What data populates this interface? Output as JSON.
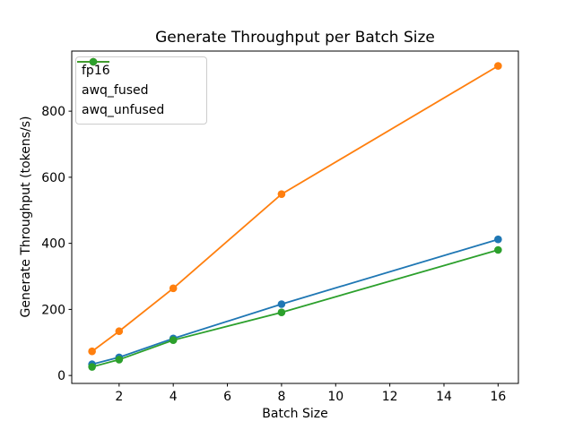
{
  "chart_data": {
    "type": "line",
    "title": "Generate Throughput per Batch Size",
    "xlabel": "Batch Size",
    "ylabel": "Generate Throughput (tokens/s)",
    "x": [
      1,
      2,
      4,
      8,
      16
    ],
    "series": [
      {
        "name": "fp16",
        "color": "#1f77b4",
        "values": [
          34,
          55,
          112,
          216,
          412
        ]
      },
      {
        "name": "awq_fused",
        "color": "#ff7f0e",
        "values": [
          73,
          134,
          264,
          549,
          937
        ]
      },
      {
        "name": "awq_unfused",
        "color": "#2ca02c",
        "values": [
          26,
          48,
          107,
          191,
          380
        ]
      }
    ],
    "xticks": [
      2,
      4,
      6,
      8,
      10,
      12,
      14,
      16
    ],
    "yticks": [
      0,
      200,
      400,
      600,
      800
    ],
    "xlim": [
      0.25,
      16.75
    ],
    "ylim": [
      -24,
      982
    ],
    "legend_position": "upper left",
    "grid": false,
    "marker": "circle",
    "background_color": "#ffffff",
    "axis_color": "#000000"
  }
}
